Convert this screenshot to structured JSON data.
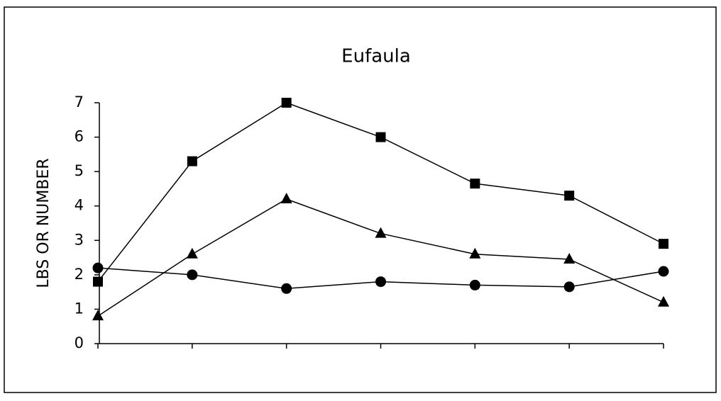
{
  "chart_data": {
    "type": "line",
    "title": "Eufaula",
    "y_label": "LBS OR NUMBER",
    "categories": [
      null,
      null,
      null,
      null,
      null,
      null,
      null
    ],
    "series": [
      {
        "color": "#000000",
        "marker": "square",
        "values": [
          1.8,
          5.3,
          7.0,
          6.0,
          4.65,
          4.3,
          2.9
        ]
      },
      {
        "color": "#000000",
        "marker": "triangle",
        "values": [
          0.8,
          2.6,
          4.2,
          3.2,
          2.6,
          2.45,
          1.2
        ]
      },
      {
        "color": "#000000",
        "marker": "circle",
        "values": [
          2.2,
          2.0,
          1.6,
          1.8,
          1.7,
          1.65,
          2.1
        ]
      }
    ],
    "ylim": [
      0,
      7
    ],
    "yticks": [
      0,
      1,
      2,
      3,
      4,
      5,
      6,
      7
    ],
    "grid": false
  }
}
